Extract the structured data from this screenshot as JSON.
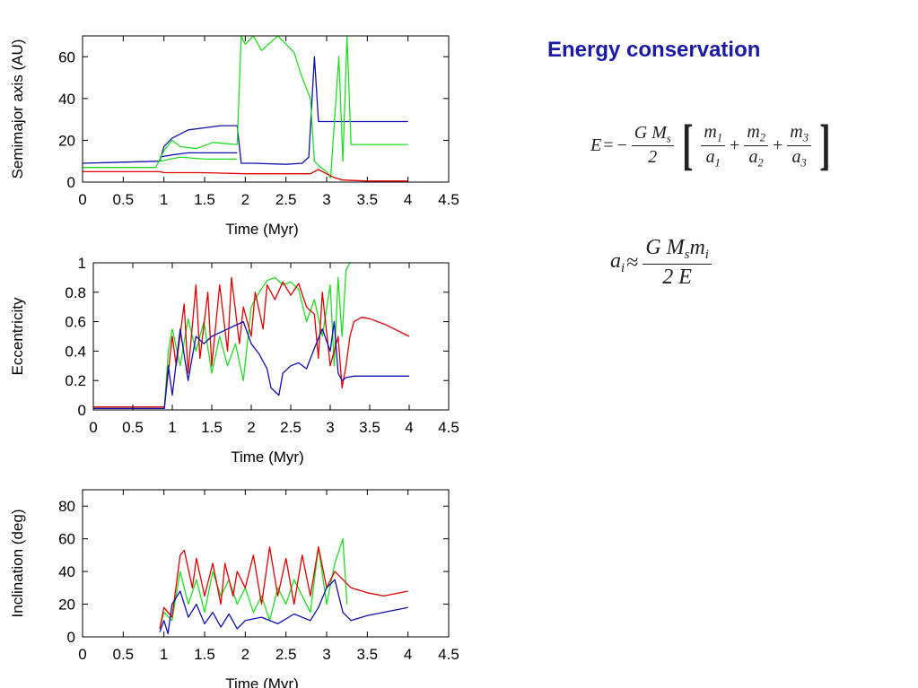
{
  "text_panel": {
    "heading": "Energy conservation",
    "eq1": {
      "lhs": "E",
      "equals": "=",
      "minus": "−",
      "coef_num": "G M",
      "coef_num_sub": "s",
      "coef_den": "2",
      "terms": [
        {
          "num": "m",
          "num_sub": "1",
          "den": "a",
          "den_sub": "1"
        },
        {
          "num": "m",
          "num_sub": "2",
          "den": "a",
          "den_sub": "2"
        },
        {
          "num": "m",
          "num_sub": "3",
          "den": "a",
          "den_sub": "3"
        }
      ],
      "plus": "+"
    },
    "eq2": {
      "lhs": "a",
      "lhs_sub": "i",
      "approx": "≈",
      "num": "G M",
      "num_sub": "s",
      "num_tail": "m",
      "num_tail_sub": "i",
      "den": "2 E"
    }
  },
  "colors": {
    "red": "#e00000",
    "green": "#22dd22",
    "blue": "#1010b0"
  },
  "chart_data": [
    {
      "type": "line",
      "xlabel": "Time (Myr)",
      "ylabel": "Semimajor axis (AU)",
      "xlim": [
        0,
        4.5
      ],
      "ylim": [
        0,
        70
      ],
      "xticks": [
        "0",
        "0.5",
        "1",
        "1.5",
        "2",
        "2.5",
        "3",
        "3.5",
        "4",
        "4.5"
      ],
      "xtick_values": [
        0,
        0.5,
        1,
        1.5,
        2,
        2.5,
        3,
        3.5,
        4,
        4.5
      ],
      "yticks": [
        "0",
        "20",
        "40",
        "60"
      ],
      "ytick_values": [
        0,
        20,
        40,
        60
      ],
      "grid": false,
      "series": [
        {
          "color": "blue",
          "x": [
            0,
            0.95,
            1.0,
            1.1,
            1.2,
            1.3,
            1.5,
            1.7,
            1.9,
            1.95,
            2.1,
            2.5,
            2.7,
            2.78,
            2.85,
            2.9,
            3.0,
            3.5,
            4.0
          ],
          "y": [
            9,
            10,
            17,
            21,
            23,
            25,
            26,
            27,
            27,
            9,
            9,
            8.5,
            9,
            12,
            60,
            29,
            29,
            29,
            29
          ]
        },
        {
          "color": "blue",
          "x": [
            0.95,
            1.1,
            1.3,
            1.5,
            1.9
          ],
          "y": [
            12,
            13,
            14,
            14,
            14
          ]
        },
        {
          "color": "green",
          "x": [
            0,
            0.9,
            1.0,
            1.1,
            1.2,
            1.4,
            1.6,
            1.9,
            1.95,
            2.0,
            2.1,
            2.2,
            2.4,
            2.6,
            2.7,
            2.8,
            2.85,
            2.9,
            3.0,
            3.05,
            3.15,
            3.2,
            3.25,
            3.3,
            4.0
          ],
          "y": [
            7,
            7,
            15,
            20,
            17,
            16,
            19,
            18,
            70,
            66,
            70,
            63,
            70,
            62,
            50,
            40,
            10,
            8,
            5,
            2,
            60,
            10,
            70,
            18,
            18
          ]
        },
        {
          "color": "green",
          "x": [
            0.95,
            1.2,
            1.5,
            1.9
          ],
          "y": [
            10,
            12,
            11,
            11
          ]
        },
        {
          "color": "red",
          "x": [
            0,
            0.95,
            1.0,
            1.5,
            2.0,
            2.5,
            2.8,
            2.9,
            3.0,
            3.1,
            3.2,
            3.5,
            4.0
          ],
          "y": [
            5,
            5,
            4.5,
            4.5,
            4,
            4,
            4,
            6,
            4,
            2,
            1,
            0.5,
            0.5
          ]
        }
      ]
    },
    {
      "type": "line",
      "xlabel": "Time (Myr)",
      "ylabel": "Eccentricity",
      "xlim": [
        0,
        4.5
      ],
      "ylim": [
        0,
        1
      ],
      "xticks": [
        "0",
        "0.5",
        "1",
        "1.5",
        "2",
        "2.5",
        "3",
        "3.5",
        "4",
        "4.5"
      ],
      "xtick_values": [
        0,
        0.5,
        1,
        1.5,
        2,
        2.5,
        3,
        3.5,
        4,
        4.5
      ],
      "yticks": [
        "0",
        "0.2",
        "0.4",
        "0.6",
        "0.8",
        "1"
      ],
      "ytick_values": [
        0,
        0.2,
        0.4,
        0.6,
        0.8,
        1
      ],
      "grid": false,
      "series": [
        {
          "color": "green",
          "x": [
            0,
            0.9,
            0.95,
            1.0,
            1.1,
            1.2,
            1.3,
            1.4,
            1.5,
            1.6,
            1.7,
            1.8,
            1.9,
            2.0,
            2.1,
            2.2,
            2.3,
            2.4,
            2.5,
            2.6,
            2.7,
            2.8,
            2.9,
            3.0,
            3.05,
            3.1,
            3.15,
            3.2,
            3.25
          ],
          "y": [
            0.02,
            0.02,
            0.4,
            0.55,
            0.3,
            0.62,
            0.4,
            0.6,
            0.25,
            0.5,
            0.3,
            0.45,
            0.2,
            0.7,
            0.8,
            0.88,
            0.9,
            0.85,
            0.87,
            0.82,
            0.6,
            0.75,
            0.5,
            0.85,
            0.3,
            0.9,
            0.5,
            0.95,
            1.0
          ]
        },
        {
          "color": "red",
          "x": [
            0,
            0.9,
            1.0,
            1.05,
            1.15,
            1.2,
            1.3,
            1.35,
            1.45,
            1.5,
            1.6,
            1.7,
            1.75,
            1.85,
            1.9,
            2.0,
            2.05,
            2.15,
            2.2,
            2.3,
            2.4,
            2.5,
            2.6,
            2.7,
            2.8,
            2.85,
            2.9,
            3.0,
            3.1,
            3.15,
            3.2,
            3.25,
            3.3,
            3.4,
            3.5,
            3.7,
            4.0
          ],
          "y": [
            0.02,
            0.02,
            0.5,
            0.3,
            0.72,
            0.25,
            0.85,
            0.35,
            0.8,
            0.3,
            0.85,
            0.4,
            0.9,
            0.45,
            0.7,
            0.5,
            0.8,
            0.55,
            0.85,
            0.75,
            0.87,
            0.78,
            0.86,
            0.7,
            0.65,
            0.35,
            0.8,
            0.3,
            0.5,
            0.15,
            0.3,
            0.5,
            0.6,
            0.63,
            0.62,
            0.58,
            0.5
          ]
        },
        {
          "color": "blue",
          "x": [
            0,
            0.9,
            0.95,
            1.0,
            1.1,
            1.2,
            1.3,
            1.4,
            1.5,
            1.7,
            1.9,
            2.0,
            2.1,
            2.2,
            2.25,
            2.35,
            2.4,
            2.5,
            2.6,
            2.7,
            2.8,
            2.9,
            3.0,
            3.05,
            3.1,
            3.15,
            3.2,
            3.3,
            3.5,
            4.0
          ],
          "y": [
            0.01,
            0.01,
            0.3,
            0.1,
            0.55,
            0.2,
            0.5,
            0.45,
            0.5,
            0.55,
            0.6,
            0.45,
            0.38,
            0.28,
            0.15,
            0.1,
            0.25,
            0.3,
            0.32,
            0.28,
            0.42,
            0.55,
            0.4,
            0.6,
            0.25,
            0.2,
            0.22,
            0.23,
            0.23,
            0.23
          ]
        }
      ]
    },
    {
      "type": "line",
      "xlabel": "Time (Myr)",
      "ylabel": "Inclination (deg)",
      "xlim": [
        0,
        4.5
      ],
      "ylim": [
        0,
        90
      ],
      "xticks": [
        "0",
        "0.5",
        "1",
        "1.5",
        "2",
        "2.5",
        "3",
        "3.5",
        "4",
        "4.5"
      ],
      "xtick_values": [
        0,
        0.5,
        1,
        1.5,
        2,
        2.5,
        3,
        3.5,
        4,
        4.5
      ],
      "yticks": [
        "0",
        "20",
        "40",
        "60",
        "80"
      ],
      "ytick_values": [
        0,
        20,
        40,
        60,
        80
      ],
      "grid": false,
      "series": [
        {
          "color": "green",
          "x": [
            0.95,
            1.0,
            1.1,
            1.2,
            1.3,
            1.4,
            1.5,
            1.6,
            1.7,
            1.8,
            1.9,
            2.0,
            2.1,
            2.2,
            2.3,
            2.4,
            2.5,
            2.6,
            2.7,
            2.8,
            2.9,
            3.0,
            3.1,
            3.2,
            3.25
          ],
          "y": [
            5,
            15,
            10,
            40,
            20,
            35,
            15,
            40,
            25,
            35,
            20,
            30,
            15,
            25,
            10,
            30,
            20,
            35,
            25,
            15,
            55,
            20,
            45,
            60,
            20
          ]
        },
        {
          "color": "red",
          "x": [
            0.95,
            1.0,
            1.1,
            1.2,
            1.25,
            1.35,
            1.4,
            1.5,
            1.6,
            1.7,
            1.75,
            1.85,
            1.9,
            2.0,
            2.1,
            2.2,
            2.3,
            2.4,
            2.5,
            2.6,
            2.7,
            2.8,
            2.9,
            3.0,
            3.1,
            3.2,
            3.3,
            3.5,
            3.7,
            4.0
          ],
          "y": [
            5,
            18,
            12,
            50,
            53,
            30,
            48,
            25,
            45,
            20,
            45,
            25,
            40,
            30,
            50,
            20,
            55,
            25,
            48,
            20,
            50,
            25,
            55,
            30,
            40,
            35,
            30,
            27,
            25,
            28
          ]
        },
        {
          "color": "blue",
          "x": [
            0.95,
            1.0,
            1.05,
            1.1,
            1.2,
            1.3,
            1.4,
            1.5,
            1.6,
            1.7,
            1.8,
            1.9,
            2.0,
            2.2,
            2.4,
            2.6,
            2.8,
            2.9,
            3.0,
            3.1,
            3.2,
            3.3,
            3.5,
            4.0
          ],
          "y": [
            3,
            10,
            2,
            20,
            28,
            12,
            20,
            8,
            15,
            6,
            14,
            5,
            10,
            12,
            8,
            14,
            10,
            18,
            30,
            35,
            15,
            10,
            13,
            18
          ]
        }
      ]
    }
  ]
}
